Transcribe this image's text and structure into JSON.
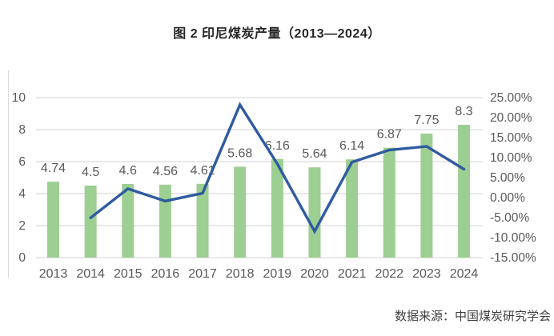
{
  "page": {
    "title": "图 2 印尼煤炭产量（2013—2024）",
    "source": "数据来源：中国煤炭研究学会"
  },
  "chart_data": {
    "type": "bar",
    "subtype": "bar-line-combo",
    "title": "图 2 印尼煤炭产量（2013—2024）",
    "categories": [
      "2013",
      "2014",
      "2015",
      "2016",
      "2017",
      "2018",
      "2019",
      "2020",
      "2021",
      "2022",
      "2023",
      "2024"
    ],
    "series": [
      {
        "name": "production-bars",
        "type": "bar",
        "axis": "left",
        "values": [
          4.74,
          4.5,
          4.6,
          4.56,
          4.61,
          5.68,
          6.16,
          5.64,
          6.14,
          6.87,
          7.75,
          8.3
        ],
        "data_labels": [
          "4.74",
          "4.5",
          "4.6",
          "4.56",
          "4.61",
          "5.68",
          "6.16",
          "5.64",
          "6.14",
          "6.87",
          "7.75",
          "8.3"
        ],
        "color": "#9DCE92"
      },
      {
        "name": "growth-rate-line",
        "type": "line",
        "axis": "right",
        "values": [
          null,
          -5.06,
          2.22,
          -0.87,
          1.1,
          23.21,
          8.45,
          -8.44,
          8.87,
          11.89,
          12.81,
          7.1
        ],
        "color": "#2F5B9F"
      }
    ],
    "left_axis": {
      "min": 0,
      "max": 10,
      "tick_labels": [
        "0",
        "2",
        "4",
        "6",
        "8",
        "10"
      ]
    },
    "right_axis": {
      "min": -15,
      "max": 25,
      "tick_labels": [
        "-15.00%",
        "-10.00%",
        "-5.00%",
        "0.00%",
        "5.00%",
        "10.00%",
        "15.00%",
        "20.00%",
        "25.00%"
      ]
    },
    "grid": true,
    "legend": "none",
    "style": {
      "grid_color": "#D9D9D9",
      "axis_text_color": "#595959",
      "bar_color": "#9DCE92",
      "line_color": "#2F5B9F",
      "border_color": "#DCDCDC"
    }
  }
}
